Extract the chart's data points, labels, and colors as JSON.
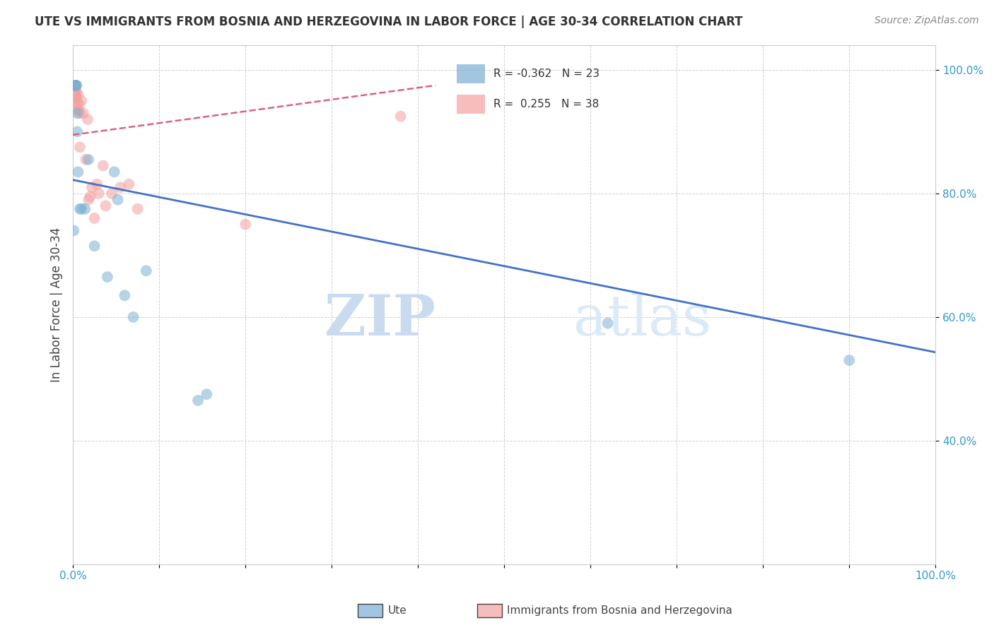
{
  "title": "UTE VS IMMIGRANTS FROM BOSNIA AND HERZEGOVINA IN LABOR FORCE | AGE 30-34 CORRELATION CHART",
  "source": "Source: ZipAtlas.com",
  "ylabel": "In Labor Force | Age 30-34",
  "watermark_zip": "ZIP",
  "watermark_atlas": "atlas",
  "ute_R": -0.362,
  "ute_N": 23,
  "bosnia_R": 0.255,
  "bosnia_N": 38,
  "ute_color": "#7BAFD4",
  "bosnia_color": "#F4A0A0",
  "trendline_ute_color": "#4472C4",
  "trendline_bosnia_color": "#E06080",
  "ute_x": [
    0.001,
    0.002,
    0.003,
    0.004,
    0.004,
    0.005,
    0.005,
    0.006,
    0.008,
    0.01,
    0.014,
    0.018,
    0.025,
    0.04,
    0.048,
    0.052,
    0.06,
    0.07,
    0.085,
    0.145,
    0.155,
    0.62,
    0.9
  ],
  "ute_y": [
    0.74,
    0.975,
    0.975,
    0.975,
    0.975,
    0.93,
    0.9,
    0.835,
    0.775,
    0.775,
    0.775,
    0.855,
    0.715,
    0.665,
    0.835,
    0.79,
    0.635,
    0.6,
    0.675,
    0.465,
    0.475,
    0.59,
    0.53
  ],
  "bosnia_x": [
    0.001,
    0.001,
    0.001,
    0.001,
    0.002,
    0.002,
    0.002,
    0.002,
    0.003,
    0.003,
    0.003,
    0.004,
    0.004,
    0.005,
    0.005,
    0.006,
    0.007,
    0.007,
    0.008,
    0.008,
    0.01,
    0.012,
    0.015,
    0.017,
    0.018,
    0.02,
    0.022,
    0.025,
    0.028,
    0.03,
    0.035,
    0.038,
    0.045,
    0.055,
    0.065,
    0.075,
    0.2,
    0.38
  ],
  "bosnia_y": [
    0.975,
    0.965,
    0.975,
    0.96,
    0.975,
    0.965,
    0.96,
    0.955,
    0.975,
    0.96,
    0.95,
    0.965,
    0.955,
    0.945,
    0.935,
    0.96,
    0.945,
    0.935,
    0.93,
    0.875,
    0.95,
    0.93,
    0.855,
    0.92,
    0.79,
    0.795,
    0.81,
    0.76,
    0.815,
    0.8,
    0.845,
    0.78,
    0.8,
    0.81,
    0.815,
    0.775,
    0.75,
    0.925
  ],
  "ute_trend_x0": 0.0,
  "ute_trend_x1": 1.0,
  "ute_trend_y0": 0.822,
  "ute_trend_y1": 0.543,
  "bosnia_trend_x0": 0.0,
  "bosnia_trend_x1": 0.42,
  "bosnia_trend_y0": 0.895,
  "bosnia_trend_y1": 0.975,
  "xlim": [
    0.0,
    1.0
  ],
  "ylim": [
    0.2,
    1.04
  ],
  "legend_labels": [
    "Ute",
    "Immigrants from Bosnia and Herzegovina"
  ]
}
